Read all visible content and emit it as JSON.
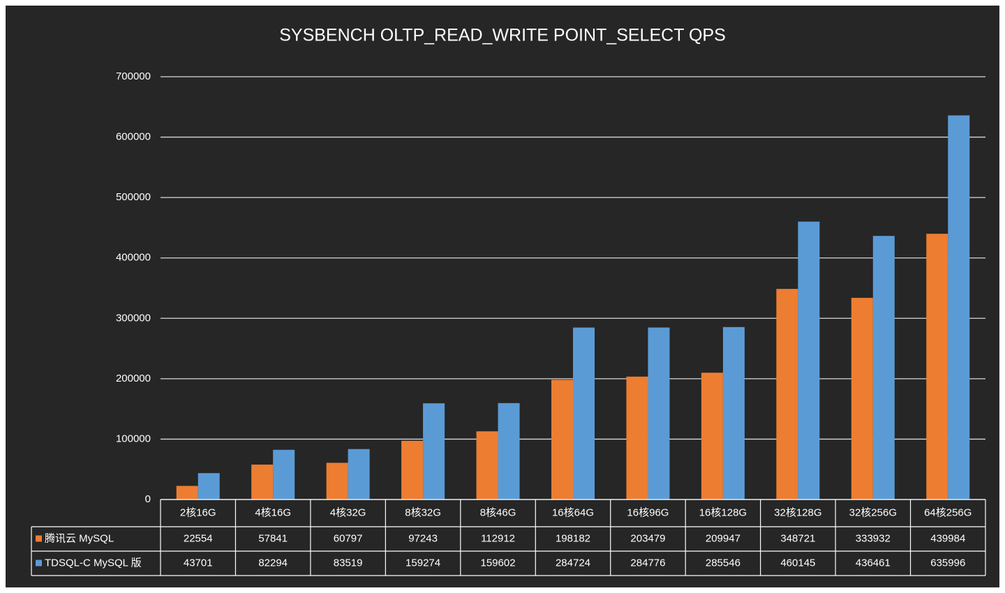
{
  "chart_data": {
    "type": "bar",
    "title": "SYSBENCH OLTP_READ_WRITE POINT_SELECT QPS",
    "categories": [
      "2核16G",
      "4核16G",
      "4核32G",
      "8核32G",
      "8核46G",
      "16核64G",
      "16核96G",
      "16核128G",
      "32核128G",
      "32核256G",
      "64核256G"
    ],
    "series": [
      {
        "name": "腾讯云 MySQL",
        "color": "#ed7d31",
        "values": [
          22554,
          57841,
          60797,
          97243,
          112912,
          198182,
          203479,
          209947,
          348721,
          333932,
          439984
        ]
      },
      {
        "name": "TDSQL-C MySQL 版",
        "color": "#5b9bd5",
        "values": [
          43701,
          82294,
          83519,
          159274,
          159602,
          284724,
          284776,
          285546,
          460145,
          436461,
          635996
        ]
      }
    ],
    "ylim": [
      0,
      700000
    ],
    "yticks": [
      0,
      100000,
      200000,
      300000,
      400000,
      500000,
      600000,
      700000
    ],
    "grid": true
  }
}
